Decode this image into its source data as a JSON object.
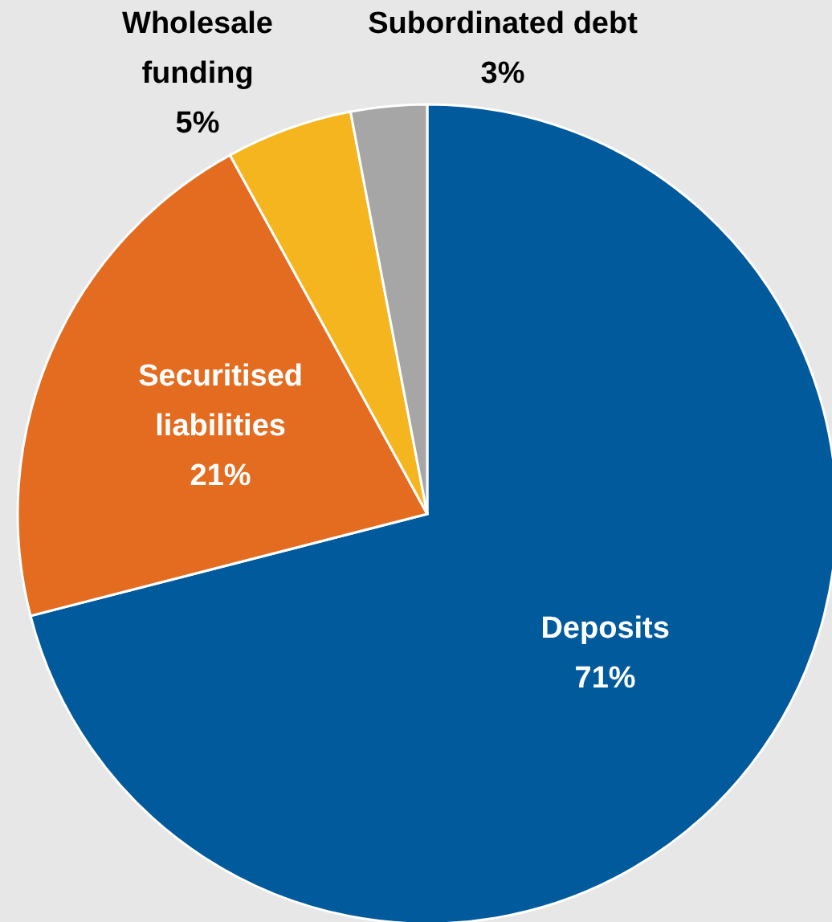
{
  "chart_data": {
    "type": "pie",
    "categories": [
      "Deposits",
      "Securitised liabilities",
      "Wholesale funding",
      "Subordinated debt"
    ],
    "values": [
      71,
      21,
      5,
      3
    ],
    "colors": [
      "#005a9c",
      "#e36c21",
      "#f5b51f",
      "#a6a6a6"
    ],
    "value_labels": [
      "71%",
      "21%",
      "5%",
      "3%"
    ]
  }
}
